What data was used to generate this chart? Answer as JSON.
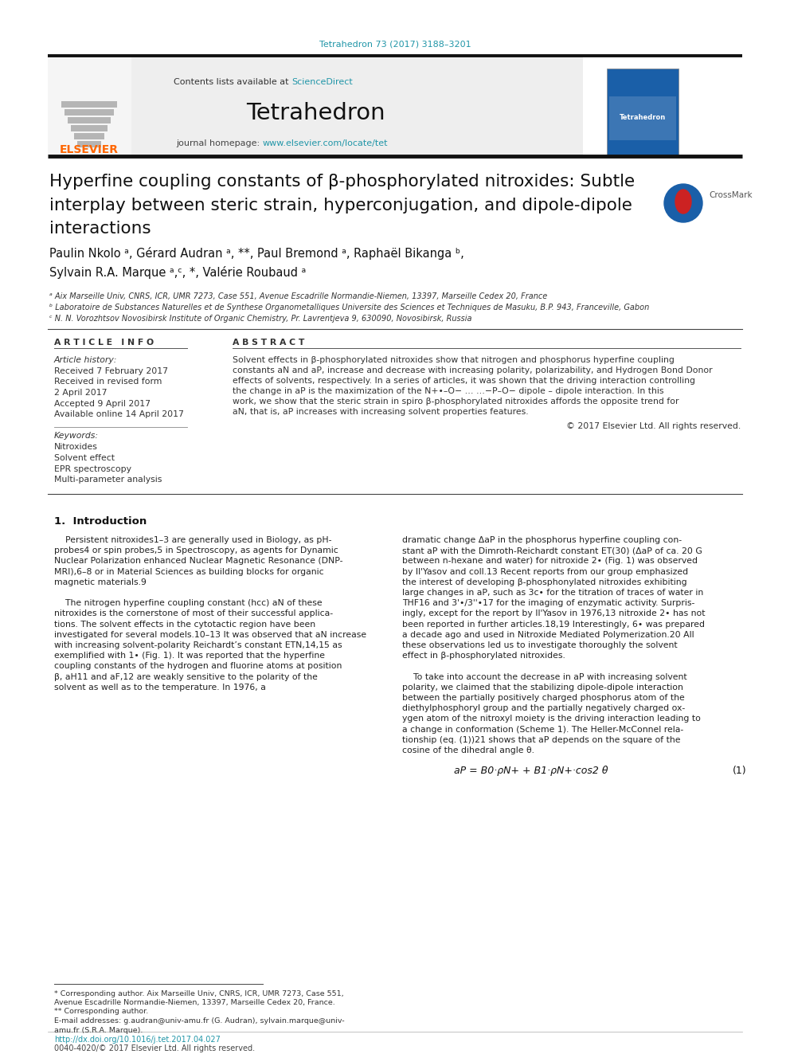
{
  "journal_ref": "Tetrahedron 73 (2017) 3188–3201",
  "journal_ref_color": "#2196a8",
  "header_bg": "#eeeeee",
  "contents_text": "Contents lists available at ",
  "sciencedirect_text": "ScienceDirect",
  "sciencedirect_color": "#2196a8",
  "journal_name": "Tetrahedron",
  "journal_homepage_label": "journal homepage: ",
  "journal_homepage_url": "www.elsevier.com/locate/tet",
  "journal_homepage_color": "#2196a8",
  "title_line1": "Hyperfine coupling constants of β-phosphorylated nitroxides: Subtle",
  "title_line2": "interplay between steric strain, hyperconjugation, and dipole-dipole",
  "title_line3": "interactions",
  "author_line1": "Paulin Nkolo ᵃ, Gérard Audran ᵃ, **, Paul Bremond ᵃ, Raphaël Bikanga ᵇ,",
  "author_line2": "Sylvain R.A. Marque ᵃ,ᶜ, *, Valérie Roubaud ᵃ",
  "affil_a": "ᵃ Aix Marseille Univ, CNRS, ICR, UMR 7273, Case 551, Avenue Escadrille Normandie-Niemen, 13397, Marseille Cedex 20, France",
  "affil_b": "ᵇ Laboratoire de Substances Naturelles et de Synthese Organometalliques Universite des Sciences et Techniques de Masuku, B.P. 943, Franceville, Gabon",
  "affil_c": "ᶜ N. N. Vorozhtsov Novosibirsk Institute of Organic Chemistry, Pr. Lavrentjeva 9, 630090, Novosibirsk, Russia",
  "article_info_header": "A R T I C L E   I N F O",
  "abstract_header": "A B S T R A C T",
  "article_history_label": "Article history:",
  "received_1": "Received 7 February 2017",
  "received_revised": "Received in revised form",
  "revised_date": "2 April 2017",
  "accepted": "Accepted 9 April 2017",
  "available": "Available online 14 April 2017",
  "keywords_label": "Keywords:",
  "keywords": [
    "Nitroxides",
    "Solvent effect",
    "EPR spectroscopy",
    "Multi-parameter analysis"
  ],
  "abstract_lines": [
    "Solvent effects in β-phosphorylated nitroxides show that nitrogen and phosphorus hyperfine coupling",
    "constants aN and aP, increase and decrease with increasing polarity, polarizability, and Hydrogen Bond Donor",
    "effects of solvents, respectively. In a series of articles, it was shown that the driving interaction controlling",
    "the change in aP is the maximization of the N+•–O− … …−P–O− dipole – dipole interaction. In this",
    "work, we show that the steric strain in spiro β-phosphorylated nitroxides affords the opposite trend for",
    "aN, that is, aP increases with increasing solvent properties features."
  ],
  "copyright": "© 2017 Elsevier Ltd. All rights reserved.",
  "intro_header": "1.  Introduction",
  "intro_col1_lines": [
    "    Persistent nitroxides1–3 are generally used in Biology, as pH-",
    "probes4 or spin probes,5 in Spectroscopy, as agents for Dynamic",
    "Nuclear Polarization enhanced Nuclear Magnetic Resonance (DNP-",
    "MRI),6–8 or in Material Sciences as building blocks for organic",
    "magnetic materials.9",
    "",
    "    The nitrogen hyperfine coupling constant (hcc) aN of these",
    "nitroxides is the cornerstone of most of their successful applica-",
    "tions. The solvent effects in the cytotactic region have been",
    "investigated for several models.10–13 It was observed that aN increase",
    "with increasing solvent-polarity Reichardt’s constant ETN,14,15 as",
    "exemplified with 1• (Fig. 1). It was reported that the hyperfine",
    "coupling constants of the hydrogen and fluorine atoms at position",
    "β, aH11 and aF,12 are weakly sensitive to the polarity of the",
    "solvent as well as to the temperature. In 1976, a"
  ],
  "intro_col2_lines": [
    "dramatic change ΔaP in the phosphorus hyperfine coupling con-",
    "stant aP with the Dimroth-Reichardt constant ET(30) (ΔaP of ca. 20 G",
    "between n-hexane and water) for nitroxide 2• (Fig. 1) was observed",
    "by Il'Yasov and coll.13 Recent reports from our group emphasized",
    "the interest of developing β-phosphonylated nitroxides exhibiting",
    "large changes in aP, such as 3c• for the titration of traces of water in",
    "THF16 and 3'•/3''•17 for the imaging of enzymatic activity. Surpris-",
    "ingly, except for the report by Il'Yasov in 1976,13 nitroxide 2• has not",
    "been reported in further articles.18,19 Interestingly, 6• was prepared",
    "a decade ago and used in Nitroxide Mediated Polymerization.20 All",
    "these observations led us to investigate thoroughly the solvent",
    "effect in β-phosphorylated nitroxides.",
    "",
    "    To take into account the decrease in aP with increasing solvent",
    "polarity, we claimed that the stabilizing dipole-dipole interaction",
    "between the partially positively charged phosphorus atom of the",
    "diethylphosphoryl group and the partially negatively charged ox-",
    "ygen atom of the nitroxyl moiety is the driving interaction leading to",
    "a change in conformation (Scheme 1). The Heller-McConnel rela-",
    "tionship (eq. (1))21 shows that aP depends on the square of the",
    "cosine of the dihedral angle θ."
  ],
  "equation": "aP = B0·ρN+ + B1·ρN+·cos2 θ",
  "eq_number": "(1)",
  "footnote_line1": "* Corresponding author. Aix Marseille Univ, CNRS, ICR, UMR 7273, Case 551,",
  "footnote_line2": "Avenue Escadrille Normandie-Niemen, 13397, Marseille Cedex 20, France.",
  "footnote_line3": "** Corresponding author.",
  "footnote_line4": "E-mail addresses: g.audran@univ-amu.fr (G. Audran), sylvain.marque@univ-",
  "footnote_line5": "amu.fr (S.R.A. Marque).",
  "doi_text": "http://dx.doi.org/10.1016/j.tet.2017.04.027",
  "issn_text": "0040-4020/© 2017 Elsevier Ltd. All rights reserved.",
  "bg_color": "#ffffff",
  "text_color": "#000000",
  "elsevier_color": "#FF6600"
}
